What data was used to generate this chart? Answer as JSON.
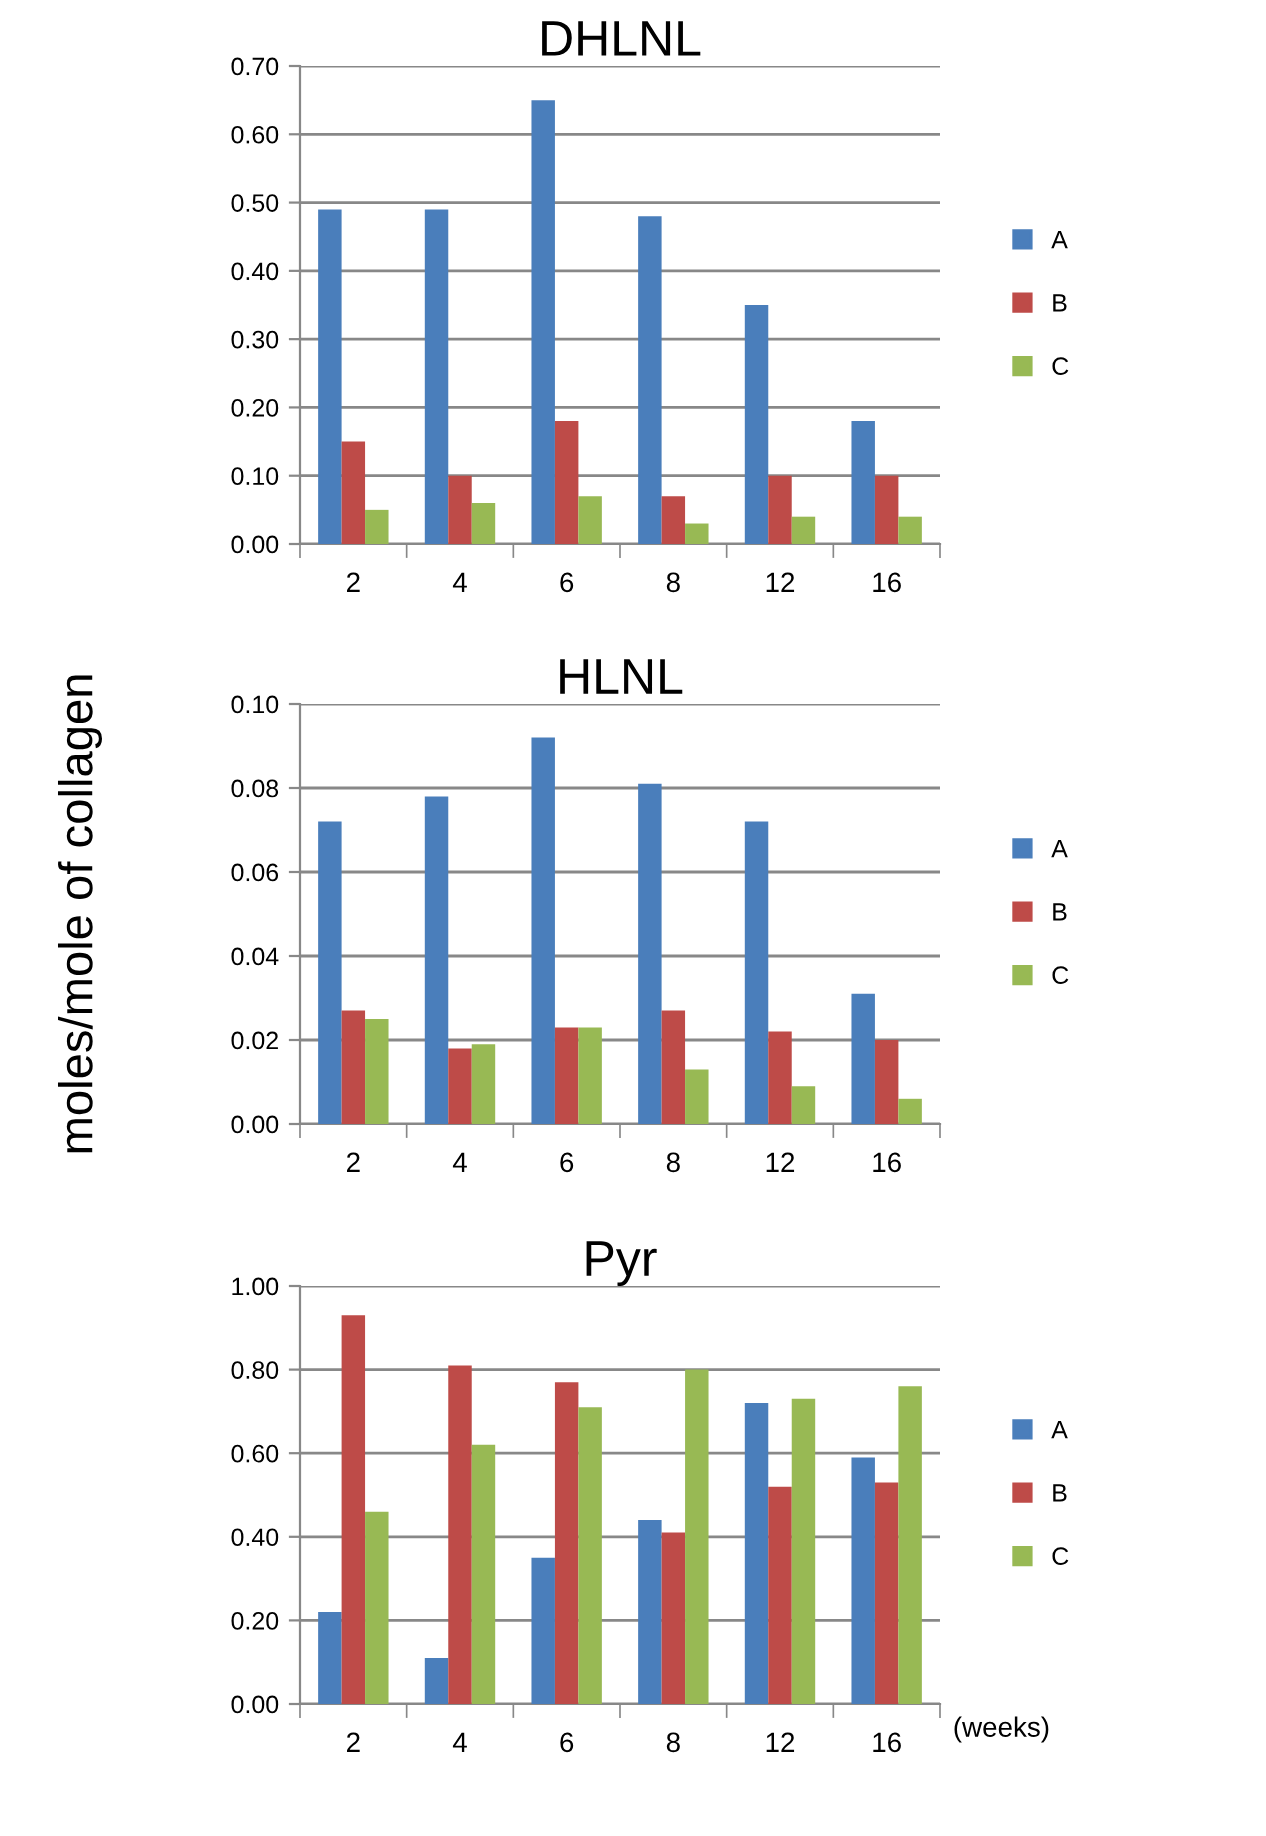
{
  "chart_data": [
    {
      "type": "bar",
      "title": "DHLNL",
      "categories": [
        "2",
        "4",
        "6",
        "8",
        "12",
        "16"
      ],
      "series": [
        {
          "name": "A",
          "color": "#4a7ebb",
          "values": [
            0.49,
            0.49,
            0.65,
            0.48,
            0.35,
            0.18
          ]
        },
        {
          "name": "B",
          "color": "#be4b48",
          "values": [
            0.15,
            0.1,
            0.18,
            0.07,
            0.1,
            0.1
          ]
        },
        {
          "name": "C",
          "color": "#98b954",
          "values": [
            0.05,
            0.06,
            0.07,
            0.03,
            0.04,
            0.04
          ]
        }
      ],
      "ylim": [
        0,
        0.7
      ],
      "yticks": [
        {
          "value": 0,
          "label": "0.00"
        },
        {
          "value": 0.1,
          "label": "0.10"
        },
        {
          "value": 0.2,
          "label": "0.20"
        },
        {
          "value": 0.3,
          "label": "0.30"
        },
        {
          "value": 0.4,
          "label": "0.40"
        },
        {
          "value": 0.5,
          "label": "0.50"
        },
        {
          "value": 0.6,
          "label": "0.60"
        },
        {
          "value": 0.7,
          "label": "0.70"
        }
      ],
      "grid": "y",
      "legend": "right"
    },
    {
      "type": "bar",
      "title": "HLNL",
      "ylabel": "moles/mole of collagen",
      "categories": [
        "2",
        "4",
        "6",
        "8",
        "12",
        "16"
      ],
      "series": [
        {
          "name": "A",
          "color": "#4a7ebb",
          "values": [
            0.072,
            0.078,
            0.092,
            0.081,
            0.072,
            0.031
          ]
        },
        {
          "name": "B",
          "color": "#be4b48",
          "values": [
            0.027,
            0.018,
            0.023,
            0.027,
            0.022,
            0.02
          ]
        },
        {
          "name": "C",
          "color": "#98b954",
          "values": [
            0.025,
            0.019,
            0.023,
            0.013,
            0.009,
            0.006
          ]
        }
      ],
      "ylim": [
        0,
        0.1
      ],
      "yticks": [
        {
          "value": 0,
          "label": "0.00"
        },
        {
          "value": 0.02,
          "label": "0.02"
        },
        {
          "value": 0.04,
          "label": "0.04"
        },
        {
          "value": 0.06,
          "label": "0.06"
        },
        {
          "value": 0.08,
          "label": "0.08"
        },
        {
          "value": 0.1,
          "label": "0.10"
        }
      ],
      "grid": "y",
      "legend": "right"
    },
    {
      "type": "bar",
      "title": "Pyr",
      "categories": [
        "2",
        "4",
        "6",
        "8",
        "12",
        "16"
      ],
      "series": [
        {
          "name": "A",
          "color": "#4a7ebb",
          "values": [
            0.22,
            0.11,
            0.35,
            0.44,
            0.72,
            0.59
          ]
        },
        {
          "name": "B",
          "color": "#be4b48",
          "values": [
            0.93,
            0.81,
            0.77,
            0.41,
            0.52,
            0.53
          ]
        },
        {
          "name": "C",
          "color": "#98b954",
          "values": [
            0.46,
            0.62,
            0.71,
            0.8,
            0.73,
            0.76
          ]
        }
      ],
      "ylim": [
        0,
        1
      ],
      "yticks": [
        {
          "value": 0,
          "label": "0.00"
        },
        {
          "value": 0.2,
          "label": "0.20"
        },
        {
          "value": 0.4,
          "label": "0.40"
        },
        {
          "value": 0.6,
          "label": "0.60"
        },
        {
          "value": 0.8,
          "label": "0.80"
        },
        {
          "value": 1,
          "label": "1.00"
        }
      ],
      "grid": "y",
      "legend": "right",
      "annotations": [
        "(weeks)"
      ]
    }
  ]
}
